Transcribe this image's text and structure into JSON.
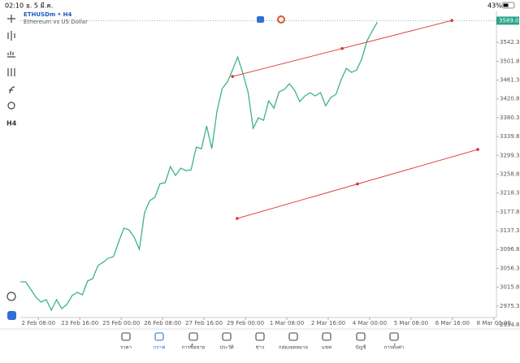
{
  "status": {
    "time": "02:10",
    "date": "อ. 5 มี.ค.",
    "battery": "43%"
  },
  "symbol": {
    "name": "ETHUSDm • H4",
    "description": "Ethereum vs US Dollar"
  },
  "toolbar": {
    "timeframe": "H4"
  },
  "chart_data": {
    "type": "line",
    "color": "#3cb38a",
    "values": [
      3027.3,
      3027.3,
      3011.6,
      2994.1,
      2983.7,
      2988.9,
      2966.2,
      2988.9,
      2969.7,
      2978.4,
      2997.6,
      3004.6,
      2999.4,
      3029.1,
      3034.3,
      3062.2,
      3069.2,
      3077.9,
      3081.4,
      3112.9,
      3142.5,
      3139.0,
      3123.3,
      3097.1,
      3175.7,
      3201.9,
      3208.9,
      3238.5,
      3240.3,
      3275.2,
      3256.0,
      3271.7,
      3266.5,
      3268.2,
      3317.1,
      3313.6,
      3362.5,
      3313.6,
      3393.9,
      3442.8,
      3456.8,
      3482.9,
      3510.9,
      3476.0,
      3435.8,
      3357.3,
      3379.9,
      3374.7,
      3416.6,
      3400.9,
      3435.8,
      3441.0,
      3453.3,
      3439.3,
      3414.9,
      3427.1,
      3434.1,
      3427.1,
      3434.1,
      3406.1,
      3423.6,
      3430.6,
      3462.0,
      3486.4,
      3477.7,
      3482.9,
      3507.4,
      3545.8,
      3566.7,
      3585.9
    ],
    "xlim": [
      0,
      92
    ],
    "ylim": [
      2926,
      3609
    ],
    "xticks": [
      {
        "value": 3.5,
        "label": "2 Feb 08:00"
      },
      {
        "value": 11.5,
        "label": "23 Feb 16:00"
      },
      {
        "value": 19.5,
        "label": "25 Feb 00:00"
      },
      {
        "value": 27.5,
        "label": "26 Feb 08:00"
      },
      {
        "value": 35.5,
        "label": "27 Feb 16:00"
      },
      {
        "value": 43.5,
        "label": "29 Feb 00:00"
      },
      {
        "value": 51.5,
        "label": "1 Mar 08:00"
      },
      {
        "value": 59.5,
        "label": "2 Mar 16:00"
      },
      {
        "value": 67.5,
        "label": "4 Mar 00:00"
      },
      {
        "value": 75.5,
        "label": "5 Mar 08:00"
      },
      {
        "value": 83.5,
        "label": "6 Mar 16:00"
      },
      {
        "value": 91.5,
        "label": "8 Mar 00:00"
      }
    ],
    "yticks": [
      {
        "value": 2934.8,
        "label": "2934.80"
      },
      {
        "value": 2975.3,
        "label": "2975.30"
      },
      {
        "value": 3015.8,
        "label": "3015.80"
      },
      {
        "value": 3056.3,
        "label": "3056.30"
      },
      {
        "value": 3096.8,
        "label": "3096.80"
      },
      {
        "value": 3137.3,
        "label": "3137.30"
      },
      {
        "value": 3177.8,
        "label": "3177.80"
      },
      {
        "value": 3218.3,
        "label": "3218.30"
      },
      {
        "value": 3258.8,
        "label": "3258.80"
      },
      {
        "value": 3299.3,
        "label": "3299.30"
      },
      {
        "value": 3339.8,
        "label": "3339.80"
      },
      {
        "value": 3380.3,
        "label": "3380.30"
      },
      {
        "value": 3420.8,
        "label": "3420.80"
      },
      {
        "value": 3461.3,
        "label": "3461.30"
      },
      {
        "value": 3501.8,
        "label": "3501.80"
      },
      {
        "value": 3542.3,
        "label": "3542.30"
      }
    ],
    "current_price": 3589.02,
    "price_color": "#2aa389",
    "trendlines": [
      {
        "color": "#e03030",
        "x": [
          41.0,
          83.4
        ],
        "y": [
          3469.0,
          3589.4
        ]
      },
      {
        "color": "#e03030",
        "x": [
          41.9,
          88.4
        ],
        "y": [
          3163.5,
          3311.9
        ]
      }
    ]
  },
  "nav": [
    "ราคา",
    "กราฟ",
    "การซื้อขาย",
    "ประวัติ",
    "ข่าว",
    "กล่องจดหมาย",
    "แชท",
    "บัญชี",
    "การตั้งค่า"
  ]
}
